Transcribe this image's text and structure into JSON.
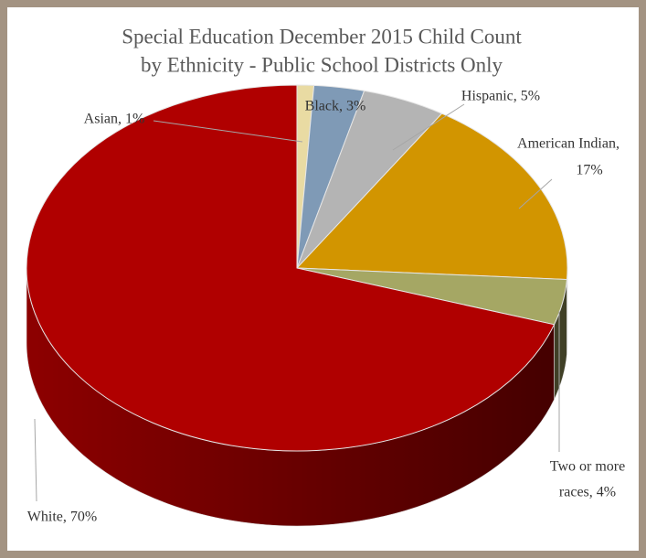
{
  "chart_data": {
    "type": "pie3d",
    "title": [
      "Special Education December 2015 Child Count",
      "by Ethnicity - Public School Districts Only"
    ],
    "values": [
      1,
      3,
      5,
      17,
      4,
      70
    ],
    "value_labels": [
      [
        "Asian, 1%"
      ],
      [
        "Black, 3%"
      ],
      [
        "Hispanic, 5%"
      ],
      [
        "American Indian,",
        "17%"
      ],
      [
        "Two or more",
        "races, 4%"
      ],
      [
        "White, 70%"
      ]
    ],
    "colors": [
      "#e9dba3",
      "#7f9ab6",
      "#b4b4b4",
      "#d29500",
      "#a5a764",
      "#b00000"
    ]
  }
}
